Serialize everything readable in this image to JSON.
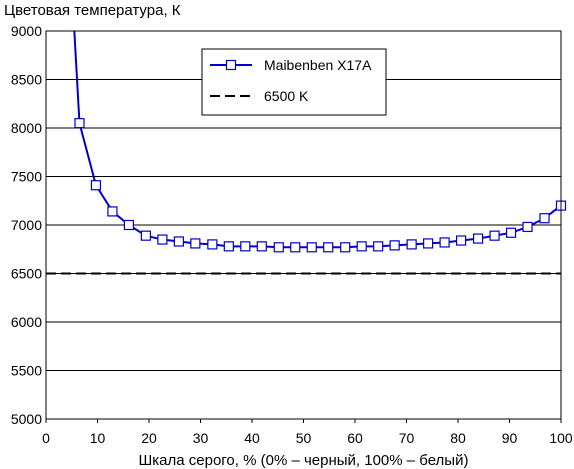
{
  "chart_data": {
    "type": "line",
    "title": "",
    "ylabel": "Цветовая температура, К",
    "xlabel": "Шкала серого, % (0% – черный, 100% – белый)",
    "xlim": [
      0,
      100
    ],
    "ylim": [
      5000,
      9000
    ],
    "x_ticks": [
      0,
      10,
      20,
      30,
      40,
      50,
      60,
      70,
      80,
      90,
      100
    ],
    "y_ticks": [
      5000,
      5500,
      6000,
      6500,
      7000,
      7500,
      8000,
      8500,
      9000
    ],
    "grid": "horizontal",
    "legend_position": "top-center",
    "series": [
      {
        "name": "Maibenben X17A",
        "color": "#0000cc",
        "marker": "square",
        "x": [
          5.5,
          6.5,
          9.7,
          12.9,
          16.1,
          19.4,
          22.6,
          25.8,
          29.0,
          32.3,
          35.5,
          38.7,
          41.9,
          45.2,
          48.4,
          51.6,
          54.8,
          58.1,
          61.3,
          64.5,
          67.7,
          71.0,
          74.2,
          77.4,
          80.6,
          83.9,
          87.1,
          90.3,
          93.5,
          96.8,
          100.0
        ],
        "values": [
          9000,
          8050,
          7410,
          7140,
          7000,
          6890,
          6850,
          6830,
          6810,
          6800,
          6780,
          6780,
          6780,
          6770,
          6770,
          6770,
          6770,
          6770,
          6780,
          6780,
          6790,
          6800,
          6810,
          6820,
          6840,
          6860,
          6890,
          6920,
          6980,
          7070,
          7200
        ]
      },
      {
        "name": "6500 K",
        "color": "#000000",
        "style": "dashed",
        "x": [
          0,
          100
        ],
        "values": [
          6500,
          6500
        ]
      }
    ]
  }
}
